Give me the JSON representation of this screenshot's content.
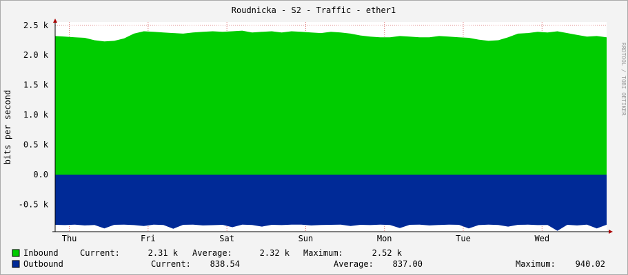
{
  "chart_data": {
    "type": "area",
    "title": "Roudnicka - S2 - Traffic - ether1",
    "y_label": "bits per second",
    "side_text": "RRDTOOL / TOBI OETIKER",
    "xlim": [
      0,
      7
    ],
    "xticks": [
      {
        "value": 0.18,
        "label": "Thu"
      },
      {
        "value": 1.18,
        "label": "Fri"
      },
      {
        "value": 2.18,
        "label": "Sat"
      },
      {
        "value": 3.18,
        "label": "Sun"
      },
      {
        "value": 4.18,
        "label": "Mon"
      },
      {
        "value": 5.18,
        "label": "Tue"
      },
      {
        "value": 6.18,
        "label": "Wed"
      }
    ],
    "ylim": [
      -955,
      2555
    ],
    "yticks": [
      {
        "value": -500,
        "label": "-0.5 k"
      },
      {
        "value": 0,
        "label": "0.0"
      },
      {
        "value": 500,
        "label": "0.5 k"
      },
      {
        "value": 1000,
        "label": "1.0 k"
      },
      {
        "value": 1500,
        "label": "1.5 k"
      },
      {
        "value": 2000,
        "label": "2.0 k"
      },
      {
        "value": 2500,
        "label": "2.5 k"
      }
    ],
    "grid": true,
    "x": [
      0,
      0.125,
      0.25,
      0.375,
      0.5,
      0.625,
      0.75,
      0.875,
      1,
      1.125,
      1.25,
      1.375,
      1.5,
      1.625,
      1.75,
      1.875,
      2,
      2.125,
      2.25,
      2.375,
      2.5,
      2.625,
      2.75,
      2.875,
      3,
      3.125,
      3.25,
      3.375,
      3.5,
      3.625,
      3.75,
      3.875,
      4,
      4.125,
      4.25,
      4.375,
      4.5,
      4.625,
      4.75,
      4.875,
      5,
      5.125,
      5.25,
      5.375,
      5.5,
      5.625,
      5.75,
      5.875,
      6,
      6.125,
      6.25,
      6.375,
      6.5,
      6.625,
      6.75,
      6.875,
      7
    ],
    "series": [
      {
        "name": "Inbound",
        "color": "#00cc00",
        "legend": [
          "Current:",
          "2.31 k",
          "Average:",
          "2.32 k",
          "Maximum:",
          "2.52 k"
        ],
        "values": [
          2320,
          2310,
          2300,
          2290,
          2250,
          2230,
          2240,
          2280,
          2360,
          2400,
          2390,
          2380,
          2370,
          2360,
          2380,
          2390,
          2400,
          2390,
          2400,
          2410,
          2380,
          2390,
          2400,
          2380,
          2400,
          2390,
          2380,
          2370,
          2390,
          2380,
          2360,
          2330,
          2310,
          2300,
          2300,
          2320,
          2310,
          2300,
          2300,
          2320,
          2310,
          2300,
          2290,
          2260,
          2240,
          2250,
          2300,
          2360,
          2370,
          2390,
          2380,
          2400,
          2370,
          2340,
          2310,
          2320,
          2300
        ]
      },
      {
        "name": "Outbound",
        "color": "#002a97",
        "legend": [
          "Current:",
          "838.54",
          "Average:",
          "837.00",
          "Maximum:",
          "940.02"
        ],
        "values": [
          -840,
          -845,
          -838,
          -850,
          -842,
          -900,
          -840,
          -836,
          -845,
          -860,
          -838,
          -842,
          -905,
          -840,
          -838,
          -850,
          -846,
          -840,
          -880,
          -838,
          -842,
          -870,
          -840,
          -845,
          -838,
          -836,
          -850,
          -842,
          -840,
          -838,
          -860,
          -840,
          -845,
          -838,
          -842,
          -895,
          -840,
          -838,
          -850,
          -842,
          -836,
          -840,
          -900,
          -845,
          -838,
          -842,
          -870,
          -840,
          -838,
          -845,
          -842,
          -940,
          -840,
          -850,
          -838,
          -900,
          -839
        ]
      }
    ]
  }
}
